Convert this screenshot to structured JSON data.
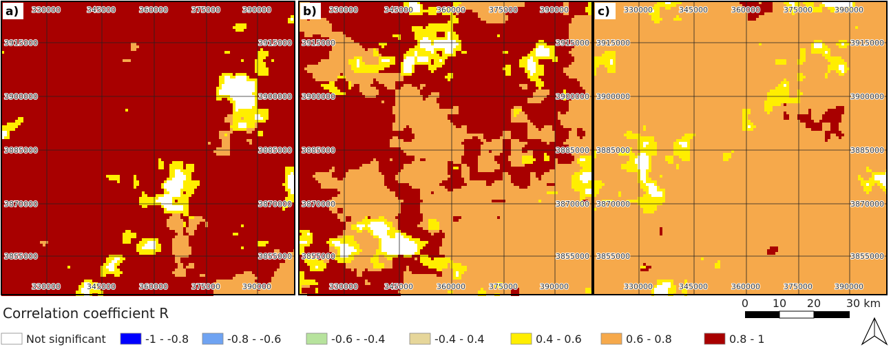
{
  "panels": [
    {
      "label": "a)"
    },
    {
      "label": "b)"
    },
    {
      "label": "c)"
    }
  ],
  "grid_labels": {
    "x": [
      "330000",
      "345000",
      "360000",
      "375000",
      "390000"
    ],
    "y": [
      "3915000",
      "3900000",
      "3885000",
      "3870000",
      "3855000"
    ]
  },
  "legend": {
    "title": "Correlation coefficient R",
    "items": [
      {
        "label": "Not significant",
        "color": "#ffffff"
      },
      {
        "label": "-1 - -0.8",
        "color": "#0000ff"
      },
      {
        "label": "-0.8 - -0.6",
        "color": "#6fa3f2"
      },
      {
        "label": "-0.6 - -0.4",
        "color": "#b7e39d"
      },
      {
        "label": "-0.4 - 0.4",
        "color": "#e6d69a"
      },
      {
        "label": "0.4 - 0.6",
        "color": "#ffee00"
      },
      {
        "label": "0.6 - 0.8",
        "color": "#f6a94b"
      },
      {
        "label": "0.8 - 1",
        "color": "#a80000"
      }
    ]
  },
  "scale_bar": {
    "labels": [
      "0",
      "10",
      "20",
      "30 km"
    ]
  }
}
